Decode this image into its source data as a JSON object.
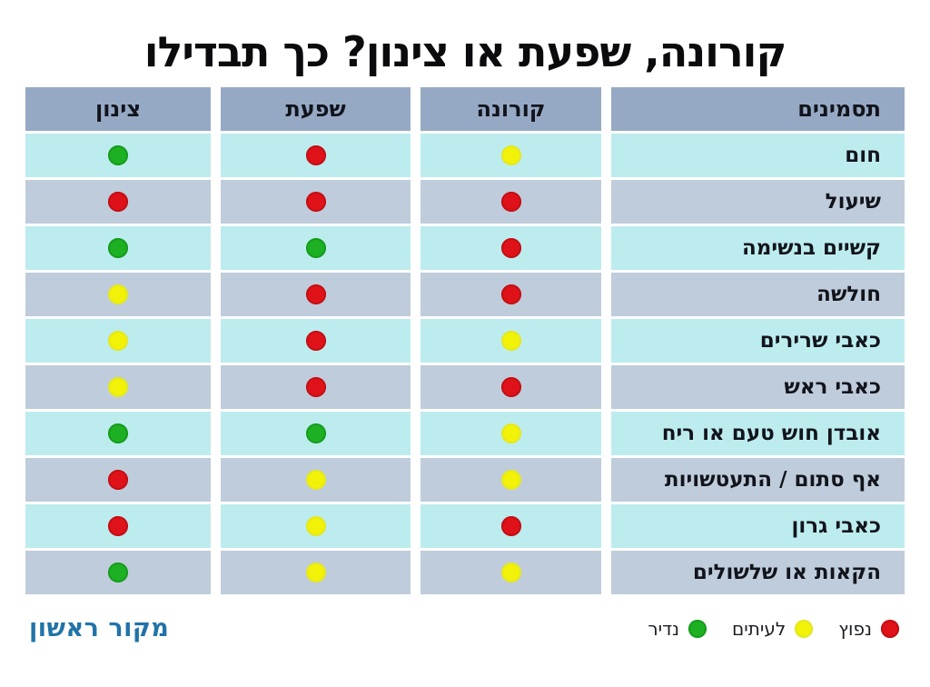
{
  "title": "קורונה, שפעת או צינון? כך תבדילו",
  "table": {
    "headers": [
      "תסמינים",
      "קורונה",
      "שפעת",
      "צינון"
    ],
    "rows": [
      {
        "symptom": "חום",
        "corona": "yellow",
        "flu": "red",
        "cold": "green"
      },
      {
        "symptom": "שיעול",
        "corona": "red",
        "flu": "red",
        "cold": "red"
      },
      {
        "symptom": "קשיים בנשימה",
        "corona": "red",
        "flu": "green",
        "cold": "green"
      },
      {
        "symptom": "חולשה",
        "corona": "red",
        "flu": "red",
        "cold": "yellow"
      },
      {
        "symptom": "כאבי שרירים",
        "corona": "yellow",
        "flu": "red",
        "cold": "yellow"
      },
      {
        "symptom": "כאבי ראש",
        "corona": "red",
        "flu": "red",
        "cold": "yellow"
      },
      {
        "symptom": "אובדן חוש טעם או ריח",
        "corona": "yellow",
        "flu": "green",
        "cold": "green"
      },
      {
        "symptom": "אף סתום / התעטשויות",
        "corona": "yellow",
        "flu": "yellow",
        "cold": "red"
      },
      {
        "symptom": "כאבי גרון",
        "corona": "red",
        "flu": "yellow",
        "cold": "red"
      },
      {
        "symptom": "הקאות או שלשולים",
        "corona": "yellow",
        "flu": "yellow",
        "cold": "green"
      }
    ]
  },
  "legend": {
    "items": [
      {
        "label": "נפוץ",
        "color": "red"
      },
      {
        "label": "לעיתים",
        "color": "yellow"
      },
      {
        "label": "נדיר",
        "color": "green"
      }
    ]
  },
  "footer": {
    "source": "מקור ראשון"
  },
  "colors": {
    "header_bg": "#96a9c4",
    "row_light": "#bdecef",
    "row_dark": "#bfccdb",
    "dot_red": "#e01219",
    "dot_yellow": "#f1f207",
    "dot_green": "#1db022",
    "logo_blue": "#2173a8"
  },
  "chart_data": {
    "type": "table",
    "title": "קורונה, שפעת או צינון? כך תבדילו",
    "columns": [
      "תסמינים",
      "קורונה",
      "שפעת",
      "צינון"
    ],
    "legend": {
      "red": "נפוץ",
      "yellow": "לעיתים",
      "green": "נדיר"
    },
    "rows": [
      [
        "חום",
        "yellow",
        "red",
        "green"
      ],
      [
        "שיעול",
        "red",
        "red",
        "red"
      ],
      [
        "קשיים בנשימה",
        "red",
        "green",
        "green"
      ],
      [
        "חולשה",
        "red",
        "red",
        "yellow"
      ],
      [
        "כאבי שרירים",
        "yellow",
        "red",
        "yellow"
      ],
      [
        "כאבי ראש",
        "red",
        "red",
        "yellow"
      ],
      [
        "אובדן חוש טעם או ריח",
        "yellow",
        "green",
        "green"
      ],
      [
        "אף סתום / התעטשויות",
        "yellow",
        "yellow",
        "red"
      ],
      [
        "כאבי גרון",
        "red",
        "yellow",
        "red"
      ],
      [
        "הקאות או שלשולים",
        "yellow",
        "yellow",
        "green"
      ]
    ]
  }
}
